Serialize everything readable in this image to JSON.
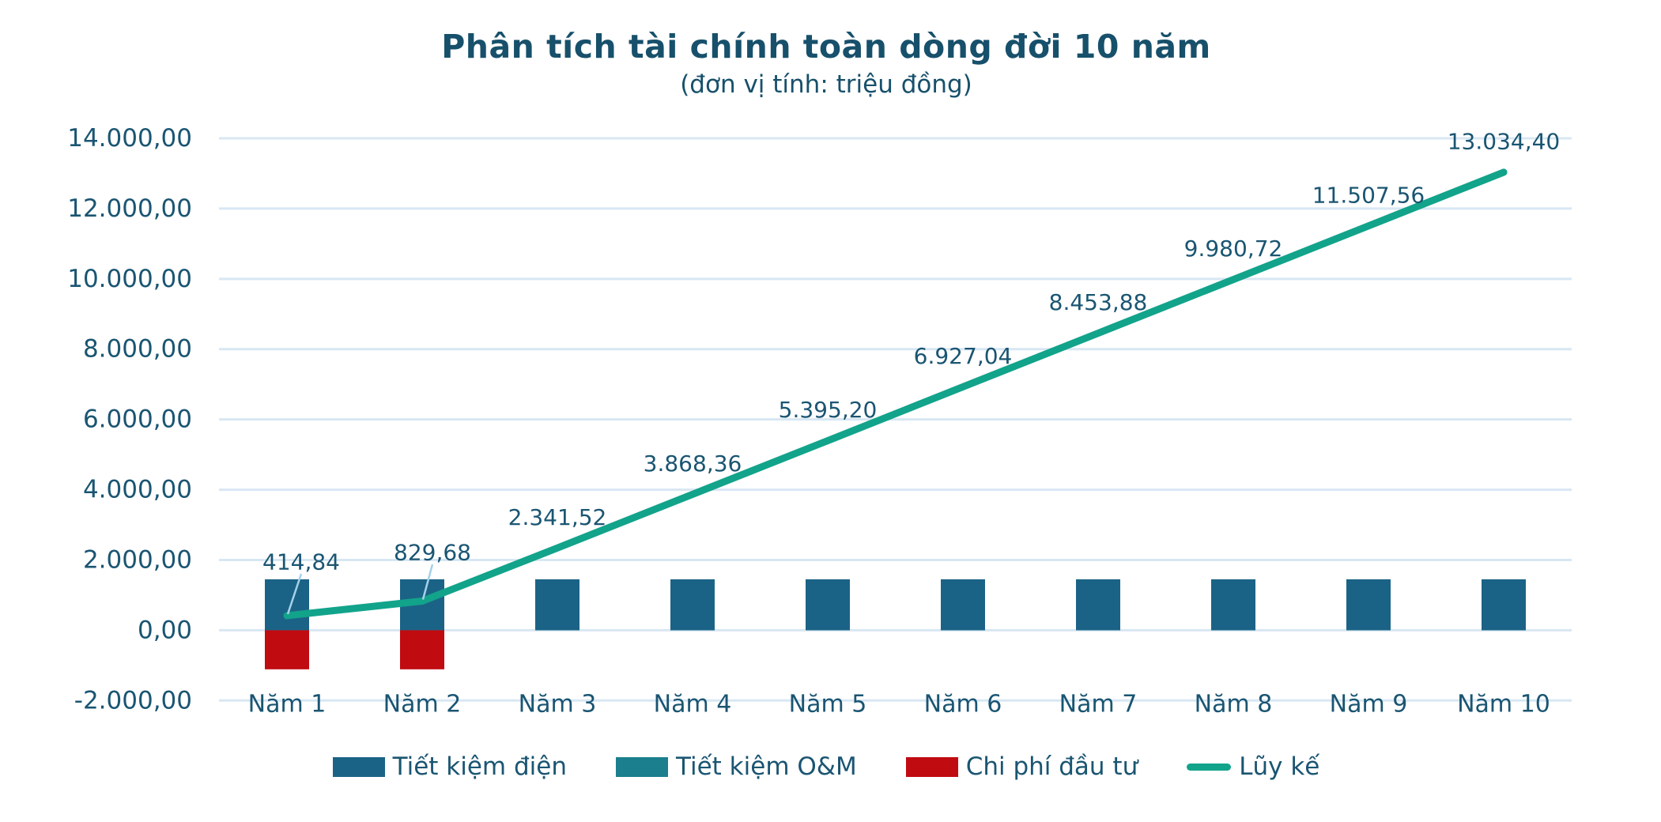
{
  "header": {
    "title": "Phân tích tài chính toàn dòng đời 10 năm",
    "subtitle": "(đơn vị tính: triệu đồng)"
  },
  "chart_data": {
    "type": "bar",
    "subtype": "combo-bar-line",
    "title": "Phân tích tài chính toàn dòng đời 10 năm",
    "subtitle": "(đơn vị tính: triệu đồng)",
    "unit": "triệu đồng",
    "categories": [
      "Năm 1",
      "Năm 2",
      "Năm 3",
      "Năm 4",
      "Năm 5",
      "Năm 6",
      "Năm 7",
      "Năm 8",
      "Năm 9",
      "Năm 10"
    ],
    "bar_series": [
      {
        "name": "Tiết kiệm O&M",
        "color": "#1b7f8d",
        "values": [
          76.84,
          76.84,
          76.84,
          76.84,
          76.84,
          76.84,
          76.84,
          76.84,
          76.84,
          76.84
        ],
        "render_note": "fully hidden behind Tiết kiệm điện bars (100% overlap)"
      },
      {
        "name": "Tiết kiệm điện",
        "color": "#1b6386",
        "values": [
          1450,
          1450,
          1450,
          1450,
          1450,
          1450,
          1450,
          1450,
          1450,
          1450
        ]
      },
      {
        "name": "Chi phí đầu tư",
        "color": "#c00b11",
        "values": [
          -1112,
          -1112,
          0,
          0,
          0,
          0,
          0,
          0,
          0,
          0
        ]
      }
    ],
    "line_series": {
      "name": "Lũy kế",
      "color": "#12a38b",
      "values": [
        414.84,
        829.68,
        2341.52,
        3868.36,
        5395.2,
        6927.04,
        8453.88,
        9980.72,
        11507.56,
        13034.4
      ],
      "labels": [
        "414,84",
        "829,68",
        "2.341,52",
        "3.868,36",
        "5.395,20",
        "6.927,04",
        "8.453,88",
        "9.980,72",
        "11.507,56",
        "13.034,40"
      ]
    },
    "y_axis": {
      "min": -2000,
      "max": 14000,
      "step": 2000,
      "tick_labels": [
        "14.000,00",
        "12.000,00",
        "10.000,00",
        "8.000,00",
        "6.000,00",
        "4.000,00",
        "2.000,00",
        "0,00",
        "-2.000,00"
      ]
    },
    "legend": [
      {
        "label": "Tiết kiệm điện",
        "color": "#1b6386",
        "marker": "square"
      },
      {
        "label": "Tiết kiệm O&M",
        "color": "#1b7f8d",
        "marker": "square"
      },
      {
        "label": "Chi phí đầu tư",
        "color": "#c00b11",
        "marker": "square"
      },
      {
        "label": "Lũy kế",
        "color": "#12a38b",
        "marker": "line"
      }
    ],
    "legend_position": "bottom",
    "grid": true
  },
  "colors": {
    "text": "#1a5572",
    "title_text": "#17506b",
    "gridline": "#d8e7f3",
    "leader_line": "#a4d2e8",
    "background": "#ffffff"
  }
}
